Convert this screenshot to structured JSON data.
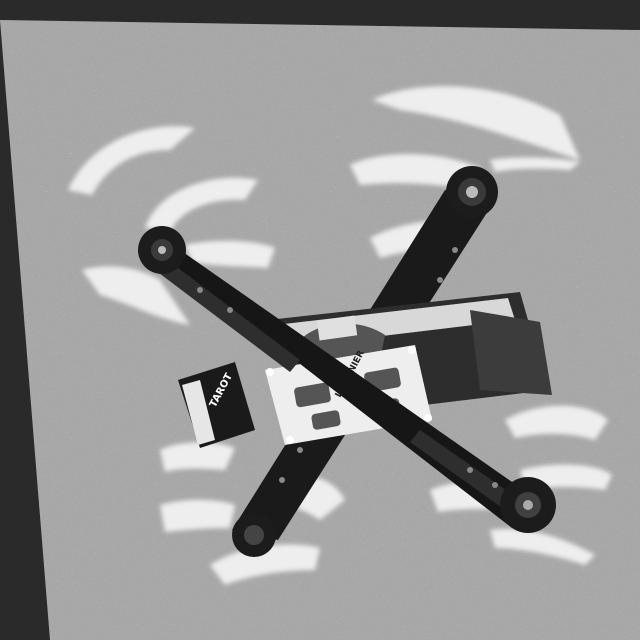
{
  "image": {
    "subject": "quadcopter-drone",
    "palette": {
      "background_dark": "#2a2a2a",
      "surface": "#a7a7a7",
      "frame_dark": "#171717",
      "plate_light": "#eeeeee",
      "blur_light": "#f4f4f4"
    },
    "printed_text": {
      "plate_label": "LUMENIER",
      "side_label": "TAROT"
    }
  }
}
